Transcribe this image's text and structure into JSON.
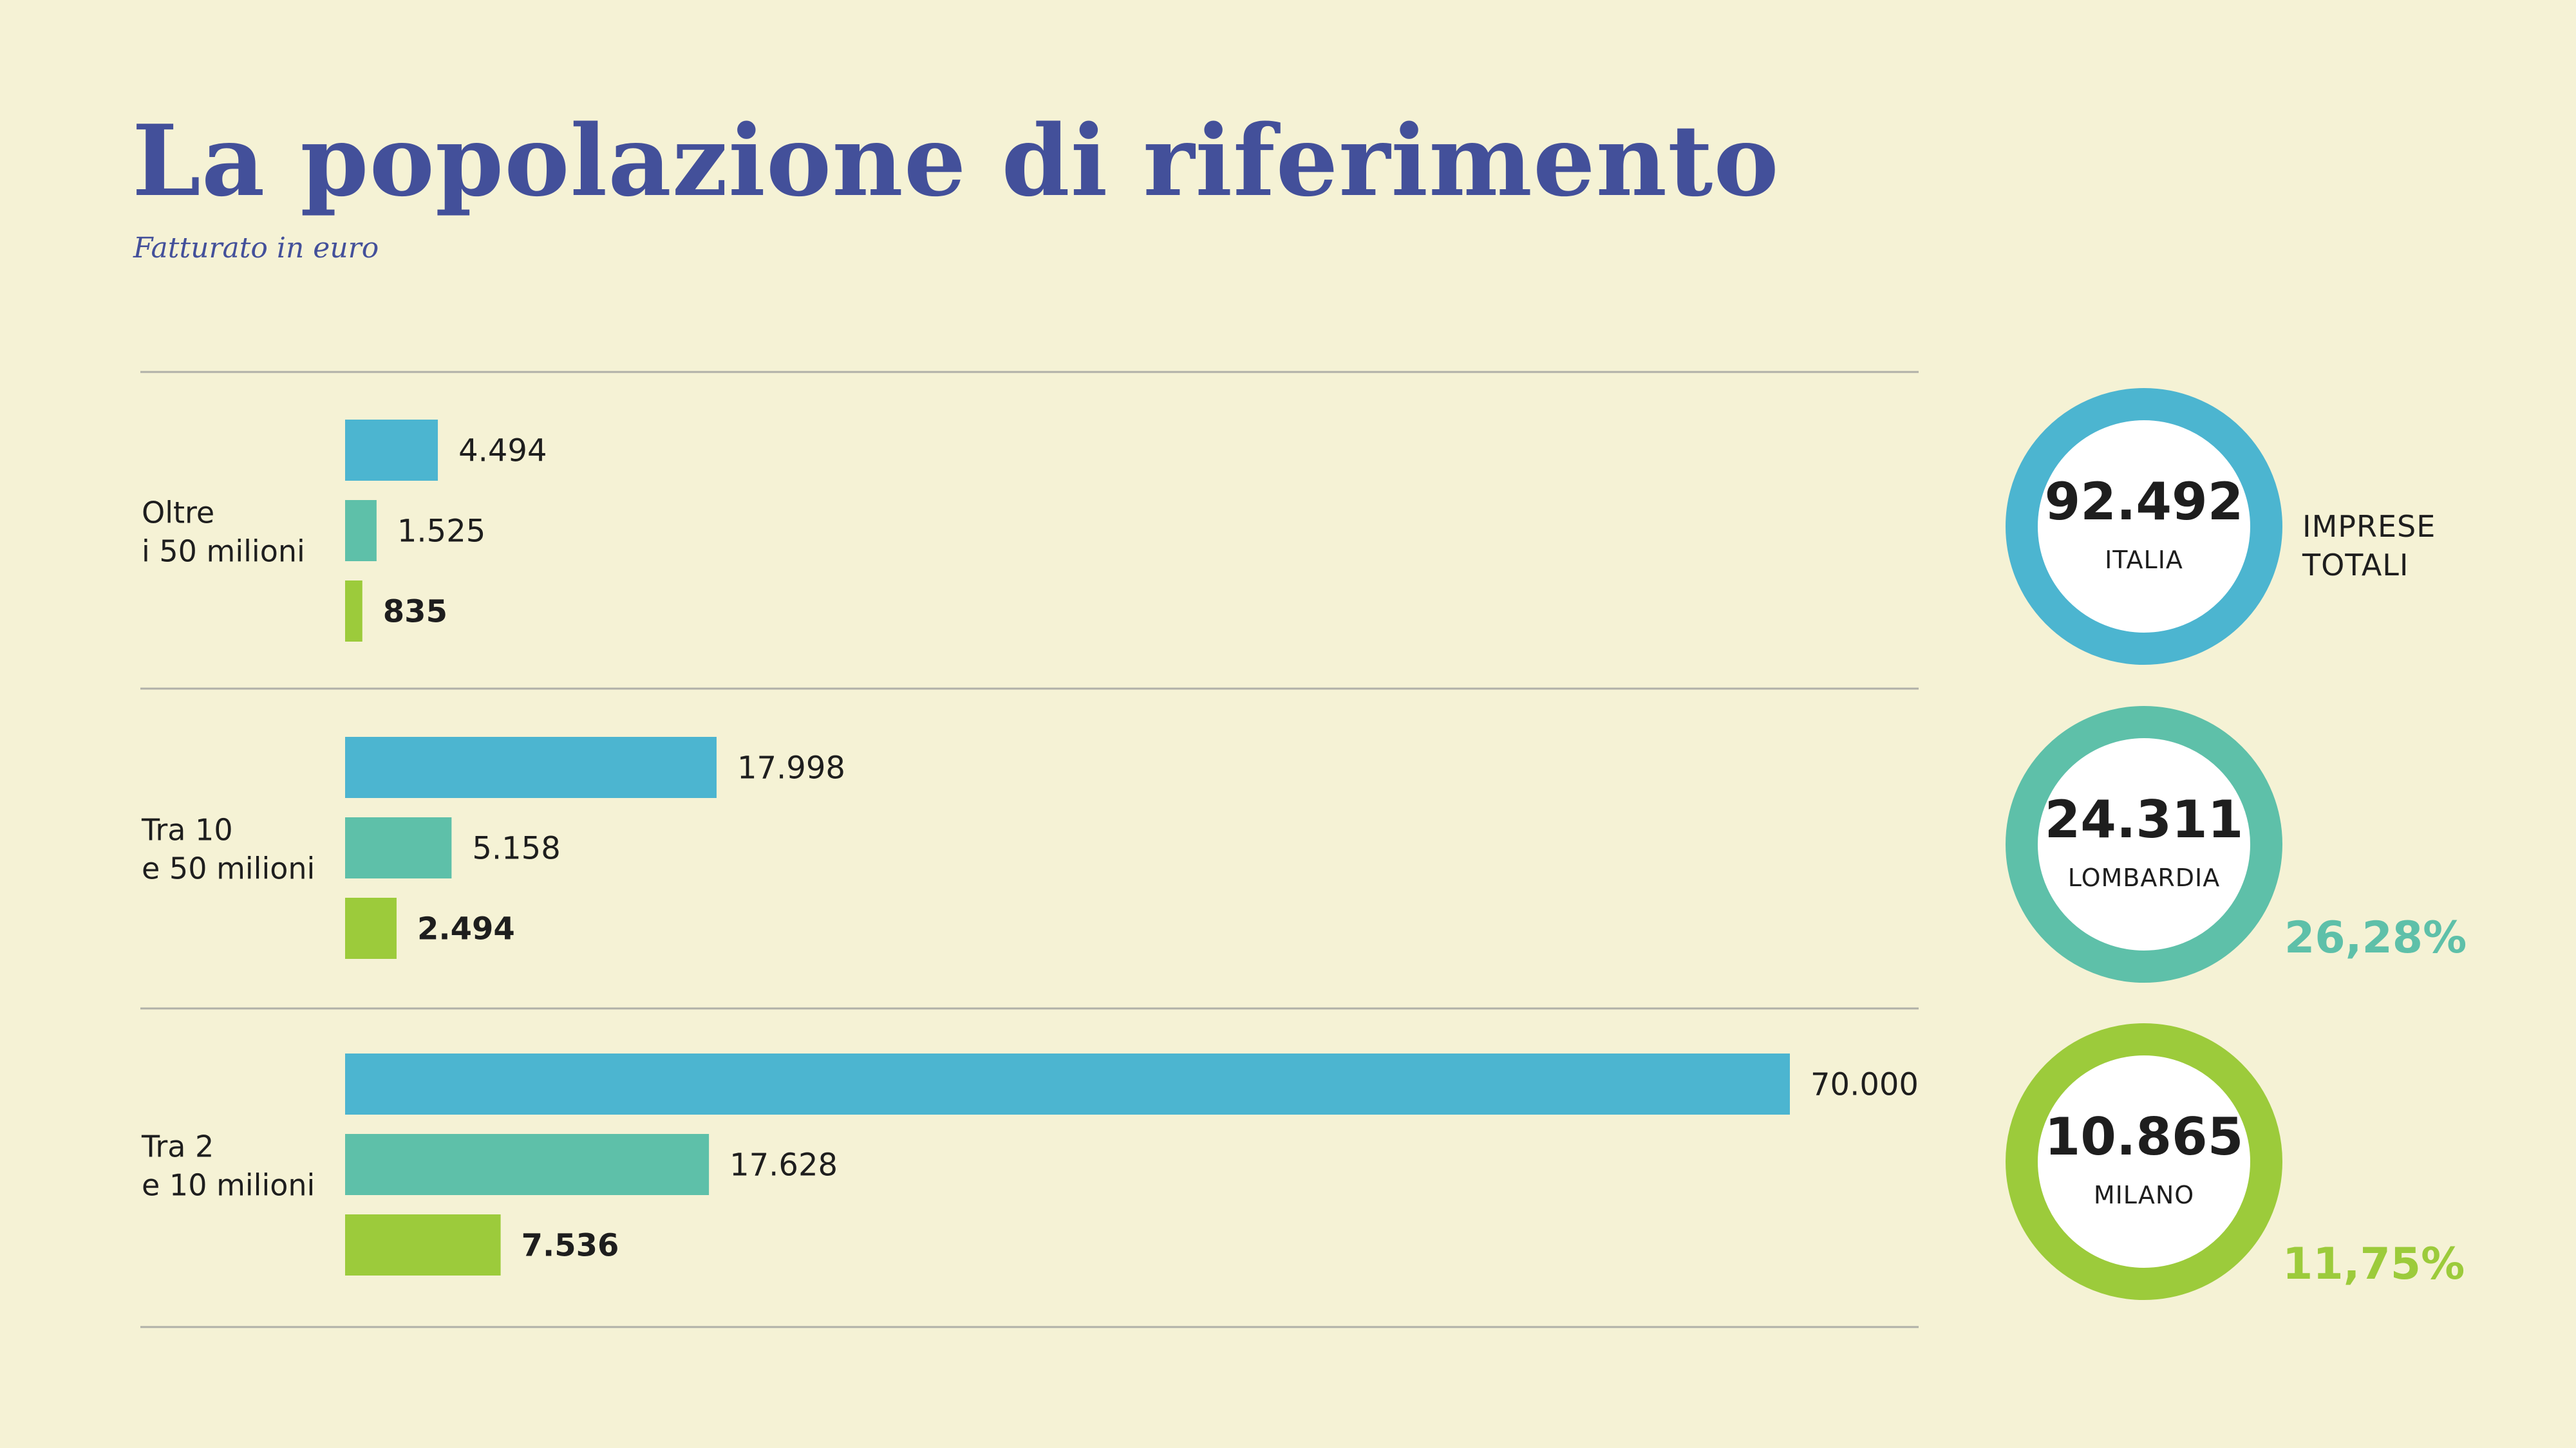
{
  "title": "La popolazione di riferimento",
  "subtitle": "Fatturato in euro",
  "chart_data": {
    "type": "bar",
    "orientation": "horizontal",
    "groups": [
      {
        "label_lines": [
          "Oltre",
          "i 50 milioni"
        ],
        "values": [
          4494,
          1525,
          835
        ],
        "labels": [
          "4.494",
          "1.525",
          "835"
        ]
      },
      {
        "label_lines": [
          "Tra 10",
          "e 50 milioni"
        ],
        "values": [
          17998,
          5158,
          2494
        ],
        "labels": [
          "17.998",
          "5.158",
          "2.494"
        ]
      },
      {
        "label_lines": [
          "Tra 2",
          "e 10 milioni"
        ],
        "values": [
          70000,
          17628,
          7536
        ],
        "labels": [
          "70.000",
          "17.628",
          "7.536"
        ]
      }
    ],
    "series_colors": [
      "#4cb5d0",
      "#5ec0a9",
      "#9ccb3b"
    ],
    "xlim": [
      0,
      70000
    ]
  },
  "totals": {
    "italia": {
      "value": "92.492",
      "name": "ITALIA",
      "color": "#4cb5d0"
    },
    "lombardia": {
      "value": "24.311",
      "name": "LOMBARDIA",
      "color": "#5ec0a9",
      "pct": "26,28%"
    },
    "milano": {
      "value": "10.865",
      "name": "MILANO",
      "color": "#9ccb3b",
      "pct": "11,75%"
    },
    "side_label_lines": [
      "IMPRESE",
      "TOTALI"
    ]
  }
}
